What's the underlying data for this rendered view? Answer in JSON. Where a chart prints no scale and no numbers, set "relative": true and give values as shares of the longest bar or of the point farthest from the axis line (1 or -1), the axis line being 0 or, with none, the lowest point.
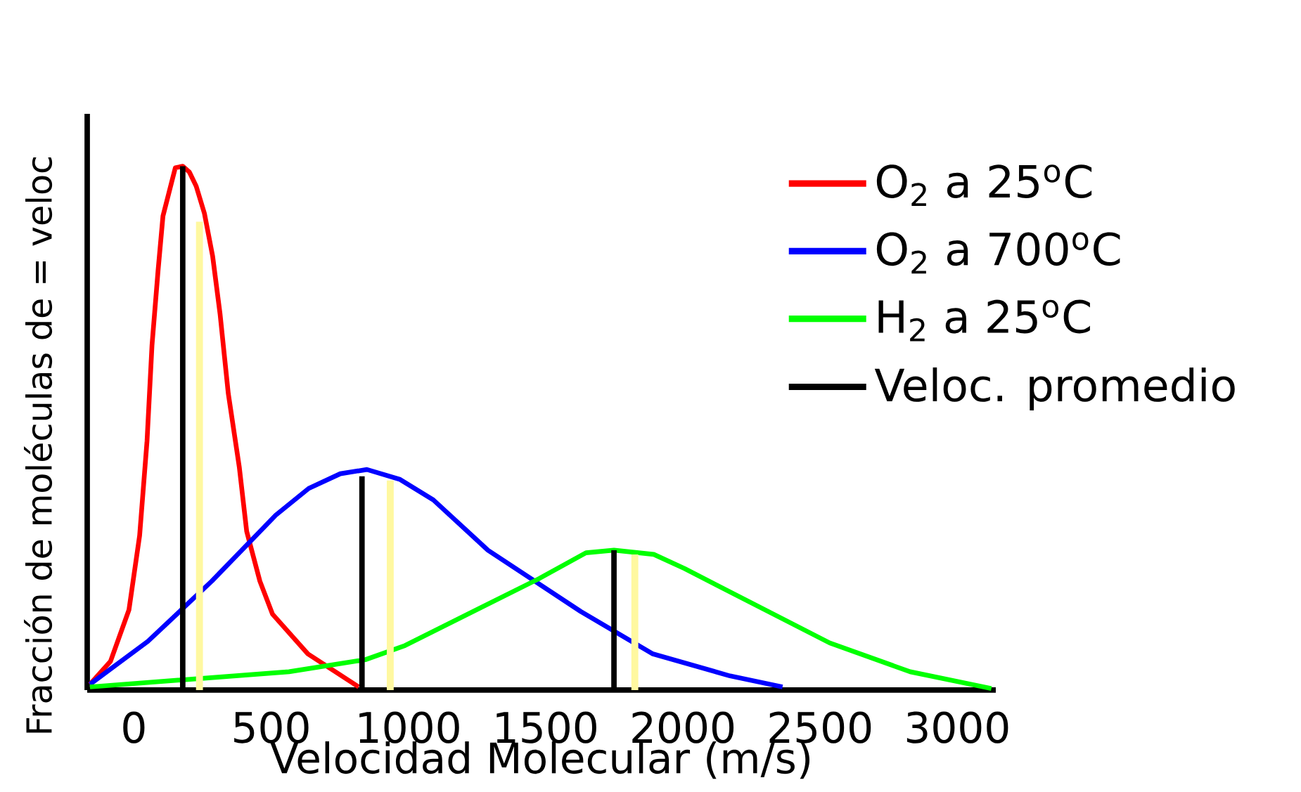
{
  "chart_data": {
    "type": "line",
    "relative": true,
    "xlabel": "Velocidad Molecular (m/s)",
    "ylabel": "Fracción  de moléculas de = veloc",
    "xlim": [
      -170,
      3140
    ],
    "xticks": [
      0,
      500,
      1000,
      1500,
      2000,
      2500,
      3000
    ],
    "grid": false,
    "legend": "right",
    "tick_labels": "x",
    "marker": "none",
    "series": [
      {
        "name": "O$_{2}$ a 25$^{o}$C",
        "color": "#ff0000",
        "x": [
          -160,
          -85,
          -18,
          21,
          48,
          66,
          88,
          106,
          151,
          178,
          202,
          227,
          257,
          287,
          314,
          344,
          384,
          411,
          459,
          505,
          634,
          819
        ],
        "values": [
          0.011,
          0.055,
          0.153,
          0.295,
          0.476,
          0.658,
          0.8,
          0.905,
          0.997,
          1.0,
          0.989,
          0.962,
          0.91,
          0.828,
          0.718,
          0.566,
          0.426,
          0.303,
          0.208,
          0.145,
          0.069,
          0.006
        ]
      },
      {
        "name": "O$_{2}$ a 700$^{o}$C",
        "color": "#0000ff",
        "x": [
          -160,
          51,
          284,
          517,
          637,
          752,
          849,
          970,
          1091,
          1290,
          1628,
          1891,
          2172,
          2363
        ],
        "values": [
          0.011,
          0.093,
          0.208,
          0.334,
          0.385,
          0.413,
          0.421,
          0.402,
          0.363,
          0.267,
          0.15,
          0.069,
          0.027,
          0.006
        ]
      },
      {
        "name": "H$_{2}$ a 25$^{o}$C",
        "color": "#00ff00",
        "x": [
          -160,
          565,
          843,
          988,
          1266,
          1477,
          1647,
          1749,
          1894,
          2006,
          2535,
          2828,
          3124
        ],
        "values": [
          0.006,
          0.035,
          0.058,
          0.085,
          0.158,
          0.213,
          0.262,
          0.267,
          0.259,
          0.232,
          0.09,
          0.035,
          0.003
        ]
      },
      {
        "name": "Veloc. promedio",
        "color": "#000000",
        "x": [
          178,
          178
        ],
        "values": [
          0,
          1.0
        ]
      },
      {
        "color": "#000000",
        "x": [
          831,
          831
        ],
        "values": [
          0,
          0.408
        ]
      },
      {
        "color": "#000000",
        "x": [
          1749,
          1749
        ],
        "values": [
          0,
          0.267
        ]
      },
      {
        "color": "#fff8a0",
        "x": [
          239,
          239
        ],
        "values": [
          0,
          0.894
        ]
      },
      {
        "color": "#fff8a0",
        "x": [
          934,
          934
        ],
        "values": [
          0,
          0.4
        ]
      },
      {
        "color": "#fff8a0",
        "x": [
          1825,
          1825
        ],
        "values": [
          0,
          0.259
        ]
      }
    ]
  }
}
